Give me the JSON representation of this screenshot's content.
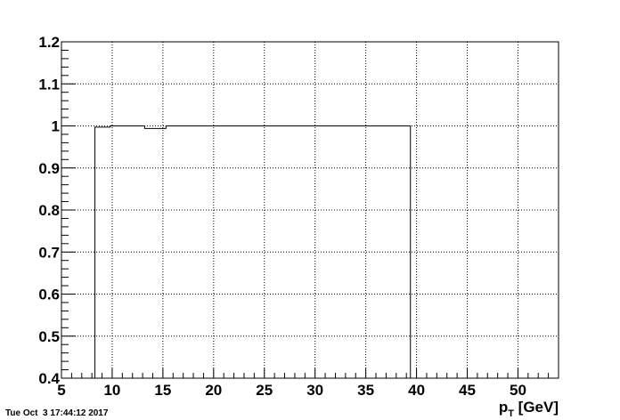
{
  "chart_data": {
    "type": "histogram",
    "title": "",
    "xlabel": {
      "main": "p",
      "sub": "T",
      "unit": " [GeV]"
    },
    "ylabel": "",
    "xlim": [
      5,
      54
    ],
    "ylim": [
      0.4,
      1.2
    ],
    "x_ticks": [
      5,
      10,
      15,
      20,
      25,
      30,
      35,
      40,
      45,
      50
    ],
    "y_ticks": [
      0.4,
      0.5,
      0.6,
      0.7,
      0.8,
      0.9,
      1,
      1.1,
      1.2
    ],
    "y_tick_labels": [
      "0.4",
      "0.5",
      "0.6",
      "0.7",
      "0.8",
      "0.9",
      "1",
      "1.1",
      "1.2"
    ],
    "grid": true,
    "bins": [
      {
        "x0": 8.3,
        "x1": 9.8,
        "y": 0.997
      },
      {
        "x0": 9.8,
        "x1": 13.2,
        "y": 1.0
      },
      {
        "x0": 13.2,
        "x1": 15.3,
        "y": 0.994
      },
      {
        "x0": 15.3,
        "x1": 39.4,
        "y": 1.0
      }
    ]
  },
  "footer": {
    "timestamp": "Tue Oct  3 17:44:12 2017"
  }
}
